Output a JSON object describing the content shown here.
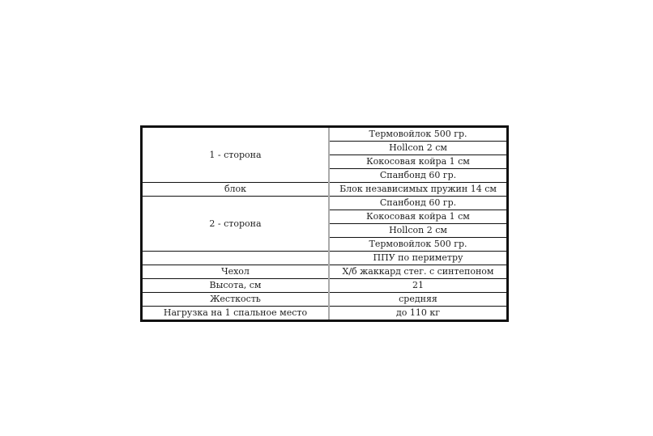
{
  "table": {
    "groups": [
      {
        "label": "1 - сторона",
        "values": [
          "Термовойлок 500 гр.",
          "Hollcon 2 см",
          "Кокосовая  койра    1 см",
          "Спанбонд 60 гр."
        ]
      },
      {
        "label": "блок",
        "values": [
          "Блок независимых  пружин 14 см"
        ]
      },
      {
        "label": "2 - сторона",
        "values": [
          "Спанбонд 60 гр.",
          "Кокосовая  койра    1 см",
          "Hollcon 2 см",
          "Термовойлок 500 гр."
        ]
      },
      {
        "label": "",
        "values": [
          "ППУ по периметру"
        ]
      },
      {
        "label": "Чехол",
        "values": [
          "Х/б жаккард стег. с синтепоном"
        ]
      },
      {
        "label": "Высота, см",
        "values": [
          "21"
        ]
      },
      {
        "label": "Жесткость",
        "values": [
          "средняя"
        ]
      },
      {
        "label": "Нагрузка на 1 спальное место",
        "values": [
          "до 110 кг"
        ]
      }
    ]
  }
}
